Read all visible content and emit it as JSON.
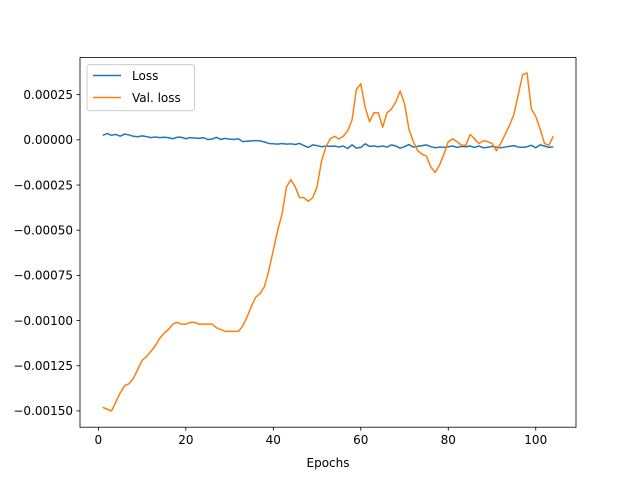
{
  "chart_data": {
    "type": "line",
    "title": "",
    "xlabel": "Epochs",
    "ylabel": "",
    "xlim": [
      -4.2,
      109.2
    ],
    "ylim": [
      -0.00159,
      0.000455
    ],
    "xticks": [
      0,
      20,
      40,
      60,
      80,
      100
    ],
    "xtick_labels": [
      "0",
      "20",
      "40",
      "60",
      "80",
      "100"
    ],
    "yticks": [
      0.00025,
      0.0,
      -0.00025,
      -0.0005,
      -0.00075,
      -0.001,
      -0.00125,
      -0.0015
    ],
    "ytick_labels": [
      "0.00025",
      "0.00000",
      "−0.00025",
      "−0.00050",
      "−0.00075",
      "−0.00100",
      "−0.00125",
      "−0.00150"
    ],
    "grid": false,
    "legend_position": "upper-left",
    "series": [
      {
        "name": "Loss",
        "color": "#1f77b4",
        "x": [
          1,
          2,
          3,
          4,
          5,
          6,
          7,
          8,
          9,
          10,
          11,
          12,
          13,
          14,
          15,
          16,
          17,
          18,
          19,
          20,
          21,
          22,
          23,
          24,
          25,
          26,
          27,
          28,
          29,
          30,
          31,
          32,
          33,
          34,
          35,
          36,
          37,
          38,
          39,
          40,
          41,
          42,
          43,
          44,
          45,
          46,
          47,
          48,
          49,
          50,
          51,
          52,
          53,
          54,
          55,
          56,
          57,
          58,
          59,
          60,
          61,
          62,
          63,
          64,
          65,
          66,
          67,
          68,
          69,
          70,
          71,
          72,
          73,
          74,
          75,
          76,
          77,
          78,
          79,
          80,
          81,
          82,
          83,
          84,
          85,
          86,
          87,
          88,
          89,
          90,
          91,
          92,
          93,
          94,
          95,
          96,
          97,
          98,
          99,
          100,
          101,
          102,
          103,
          104
        ],
        "y": [
          2.5e-05,
          3.5e-05,
          2.5e-05,
          3e-05,
          2e-05,
          3.2e-05,
          2.7e-05,
          2e-05,
          1.7e-05,
          2.2e-05,
          1.8e-05,
          1.2e-05,
          1.6e-05,
          1.2e-05,
          1.4e-05,
          1.2e-05,
          6e-06,
          1.4e-05,
          1.4e-05,
          6e-06,
          1.2e-05,
          1e-05,
          8e-06,
          1.2e-05,
          2e-06,
          4e-06,
          1.4e-05,
          2e-06,
          8e-06,
          4e-06,
          2e-06,
          6e-06,
          -1e-05,
          -8e-06,
          -6e-06,
          -4e-06,
          -6e-06,
          -1.2e-05,
          -2e-05,
          -2.2e-05,
          -2.4e-05,
          -2e-05,
          -2.4e-05,
          -2.2e-05,
          -2.6e-05,
          -2e-05,
          -3.2e-05,
          -4.2e-05,
          -2.8e-05,
          -3.2e-05,
          -3.8e-05,
          -3.4e-05,
          -3.6e-05,
          -3.4e-05,
          -4e-05,
          -3.4e-05,
          -4.8e-05,
          -2.8e-05,
          -4.6e-05,
          -4.2e-05,
          -2.2e-05,
          -3.6e-05,
          -3.4e-05,
          -3.8e-05,
          -3.4e-05,
          -4e-05,
          -2.8e-05,
          -3.4e-05,
          -4.6e-05,
          -3.8e-05,
          -2.6e-05,
          -4e-05,
          -3.6e-05,
          -3.2e-05,
          -2.8e-05,
          -3.8e-05,
          -4.4e-05,
          -4e-05,
          -4.2e-05,
          -3.8e-05,
          -3.4e-05,
          -4.2e-05,
          -3.6e-05,
          -3.8e-05,
          -3.4e-05,
          -4.2e-05,
          -3.4e-05,
          -4.4e-05,
          -4.2e-05,
          -3.6e-05,
          -4e-05,
          -4.4e-05,
          -4e-05,
          -3.6e-05,
          -3.2e-05,
          -4e-05,
          -4.2e-05,
          -3.8e-05,
          -3e-05,
          -4.4e-05,
          -2.8e-05,
          -3.4e-05,
          -4.2e-05,
          -3.8e-05
        ]
      },
      {
        "name": "Val. loss",
        "color": "#ff7f0e",
        "x": [
          1,
          2,
          3,
          4,
          5,
          6,
          7,
          8,
          9,
          10,
          11,
          12,
          13,
          14,
          15,
          16,
          17,
          18,
          19,
          20,
          21,
          22,
          23,
          24,
          25,
          26,
          27,
          28,
          29,
          30,
          31,
          32,
          33,
          34,
          35,
          36,
          37,
          38,
          39,
          40,
          41,
          42,
          43,
          44,
          45,
          46,
          47,
          48,
          49,
          50,
          51,
          52,
          53,
          54,
          55,
          56,
          57,
          58,
          59,
          60,
          61,
          62,
          63,
          64,
          65,
          66,
          67,
          68,
          69,
          70,
          71,
          72,
          73,
          74,
          75,
          76,
          77,
          78,
          79,
          80,
          81,
          82,
          83,
          84,
          85,
          86,
          87,
          88,
          89,
          90,
          91,
          92,
          93,
          94,
          95,
          96,
          97,
          98,
          99,
          100,
          101,
          102,
          103,
          104
        ],
        "y": [
          -0.00148,
          -0.00149,
          -0.0015,
          -0.00145,
          -0.0014,
          -0.00136,
          -0.00135,
          -0.00132,
          -0.00127,
          -0.00122,
          -0.0012,
          -0.00117,
          -0.00114,
          -0.0011,
          -0.00107,
          -0.00105,
          -0.00102,
          -0.00101,
          -0.00102,
          -0.00102,
          -0.00101,
          -0.00101,
          -0.00102,
          -0.00102,
          -0.00102,
          -0.00102,
          -0.00104,
          -0.00105,
          -0.00106,
          -0.00106,
          -0.00106,
          -0.00106,
          -0.00103,
          -0.00098,
          -0.00092,
          -0.00087,
          -0.00085,
          -0.00081,
          -0.00072,
          -0.00061,
          -0.0005,
          -0.00041,
          -0.00026,
          -0.00022,
          -0.00026,
          -0.00032,
          -0.00032,
          -0.00034,
          -0.00032,
          -0.00026,
          -0.00012,
          -4e-05,
          5e-06,
          2e-05,
          5e-06,
          2e-05,
          5e-05,
          0.00011,
          0.00028,
          0.00031,
          0.00018,
          0.0001,
          0.00015,
          0.00015,
          7e-05,
          0.00015,
          0.00017,
          0.00021,
          0.00027,
          0.0002,
          6e-05,
          -1e-05,
          -6e-05,
          -8e-05,
          -9e-05,
          -0.00015,
          -0.00018,
          -0.00014,
          -8e-05,
          -1e-05,
          5e-06,
          -1e-05,
          -3e-05,
          -3e-05,
          3e-05,
          5e-06,
          -2e-05,
          -5e-06,
          -1e-05,
          -2e-05,
          -6e-05,
          -2e-05,
          3e-05,
          8e-05,
          0.00014,
          0.00025,
          0.00036,
          0.00037,
          0.00017,
          0.00013,
          6e-05,
          -2e-05,
          -3e-05,
          2e-05
        ]
      }
    ]
  }
}
